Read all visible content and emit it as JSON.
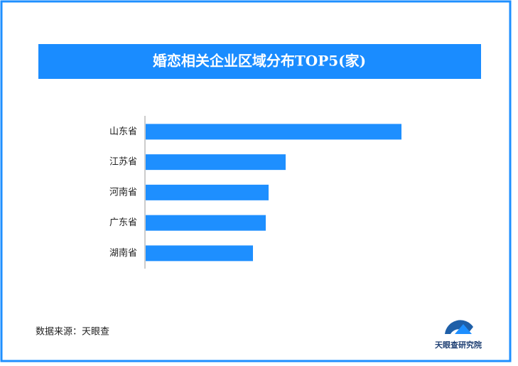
{
  "chart_data": {
    "type": "bar",
    "orientation": "horizontal",
    "title": "婚恋相关企业区域分布TOP5(家)",
    "categories": [
      "山东省",
      "江苏省",
      "河南省",
      "广东省",
      "湖南省"
    ],
    "values": [
      360,
      197,
      173,
      169,
      151
    ],
    "color": "#1e8fff",
    "source": "数据来源：天眼查",
    "logo_text": "天眼查研究院"
  }
}
